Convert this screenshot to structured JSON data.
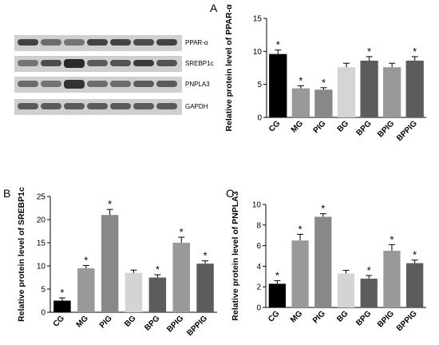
{
  "panel_letters": {
    "a": "A",
    "b": "B",
    "c": "C"
  },
  "blot": {
    "rows": [
      {
        "label": "PPAR-α",
        "intensities": [
          0.85,
          0.6,
          0.55,
          0.85,
          0.85,
          0.8,
          0.85
        ]
      },
      {
        "label": "SREBP1c",
        "intensities": [
          0.55,
          0.8,
          1.0,
          0.7,
          0.75,
          0.9,
          0.75
        ]
      },
      {
        "label": "PNPLA3",
        "intensities": [
          0.6,
          0.55,
          0.95,
          0.6,
          0.6,
          0.7,
          0.7
        ]
      },
      {
        "label": "GAPDH",
        "intensities": [
          0.7,
          0.7,
          0.7,
          0.7,
          0.7,
          0.7,
          0.7
        ]
      }
    ]
  },
  "chart_data": [
    {
      "type": "bar",
      "ylabel": "Relative protein level of PPAR-α",
      "categories": [
        "CG",
        "MG",
        "PIG",
        "BG",
        "BPG",
        "BPIG",
        "BPPIG"
      ],
      "values": [
        9.6,
        4.4,
        4.2,
        7.6,
        8.6,
        7.6,
        8.6
      ],
      "errors": [
        0.6,
        0.4,
        0.3,
        0.6,
        0.6,
        0.6,
        0.6
      ],
      "significant": [
        true,
        true,
        true,
        false,
        true,
        false,
        true
      ],
      "ylim": [
        0,
        15
      ],
      "yticks": [
        0,
        5,
        10,
        15
      ],
      "colors": [
        "#000000",
        "#999999",
        "#888888",
        "#d4d4d4",
        "#5c5c5c",
        "#999999",
        "#5c5c5c"
      ]
    },
    {
      "type": "bar",
      "ylabel": "Relative protein level of SREBP1c",
      "categories": [
        "CG",
        "MG",
        "PIG",
        "BG",
        "BPG",
        "BPIG",
        "BPPIG"
      ],
      "values": [
        2.5,
        9.5,
        21.0,
        8.5,
        7.5,
        15.0,
        10.5
      ],
      "errors": [
        0.6,
        0.6,
        1.2,
        0.6,
        0.6,
        1.2,
        0.6
      ],
      "significant": [
        true,
        true,
        true,
        false,
        true,
        true,
        true
      ],
      "ylim": [
        0,
        25
      ],
      "yticks": [
        0,
        5,
        10,
        15,
        20,
        25
      ],
      "colors": [
        "#000000",
        "#999999",
        "#888888",
        "#d4d4d4",
        "#5c5c5c",
        "#999999",
        "#5c5c5c"
      ]
    },
    {
      "type": "bar",
      "ylabel": "Relative protein level of PNPLA3",
      "categories": [
        "CG",
        "MG",
        "PIG",
        "BG",
        "BPG",
        "BPIG",
        "BPPIG"
      ],
      "values": [
        2.3,
        6.5,
        8.8,
        3.3,
        2.8,
        5.5,
        4.3
      ],
      "errors": [
        0.3,
        0.6,
        0.3,
        0.3,
        0.3,
        0.6,
        0.3
      ],
      "significant": [
        true,
        true,
        true,
        false,
        true,
        true,
        true
      ],
      "ylim": [
        0,
        10
      ],
      "yticks": [
        0,
        2,
        4,
        6,
        8,
        10
      ],
      "colors": [
        "#000000",
        "#999999",
        "#888888",
        "#d4d4d4",
        "#5c5c5c",
        "#999999",
        "#5c5c5c"
      ]
    }
  ],
  "significance_mark": "*"
}
